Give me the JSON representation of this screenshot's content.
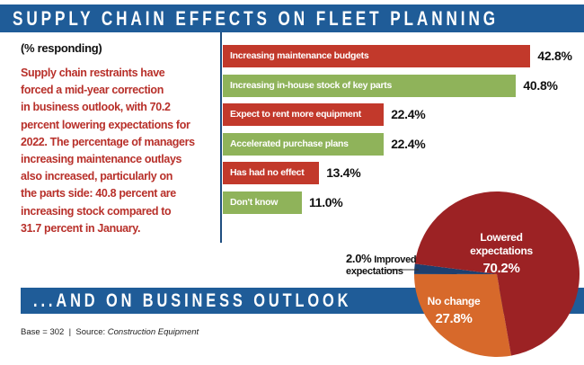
{
  "header": {
    "title": "SUPPLY CHAIN EFFECTS ON FLEET PLANNING",
    "subtitle": "...AND ON BUSINESS OUTLOOK"
  },
  "unit_label": "(% responding)",
  "description_lines": [
    "Supply chain restraints have",
    "forced a mid-year correction",
    "in business outlook, with 70.2",
    "percent lowering expectations for",
    "2022. The percentage of managers",
    "increasing maintenance outlays",
    "also increased, particularly on",
    "the parts side: 40.8 percent are",
    "increasing stock compared to",
    "31.7 percent in January."
  ],
  "footer": {
    "base": "Base = 302",
    "separator": "|",
    "source_label": "Source:",
    "source": "Construction Equipment"
  },
  "colors": {
    "band": "#1f5c98",
    "bar_red": "#c2392b",
    "bar_green": "#8fb35a",
    "pie_lowered": "#9c2224",
    "pie_nochange": "#d7692b",
    "pie_improved": "#1d3f6e",
    "text_red": "#b8302a"
  },
  "chart_data": [
    {
      "type": "bar",
      "orientation": "horizontal",
      "categories": [
        "Increasing maintenance budgets",
        "Increasing in-house stock of key parts",
        "Expect to rent more equipment",
        "Accelerated purchase plans",
        "Has had no effect",
        "Don't know"
      ],
      "values": [
        42.8,
        40.8,
        22.4,
        22.4,
        13.4,
        11.0
      ],
      "value_labels": [
        "42.8%",
        "40.8%",
        "22.4%",
        "22.4%",
        "13.4%",
        "11.0%"
      ],
      "bar_colors": [
        "#c2392b",
        "#8fb35a",
        "#c2392b",
        "#8fb35a",
        "#c2392b",
        "#8fb35a"
      ],
      "unit": "%"
    },
    {
      "type": "pie",
      "slices": [
        {
          "label": "Lowered expectations",
          "label_lines": [
            "Lowered",
            "expectations"
          ],
          "value": 70.2,
          "value_label": "70.2%",
          "color": "#9c2224"
        },
        {
          "label": "No change",
          "label_lines": [
            "No change"
          ],
          "value": 27.8,
          "value_label": "27.8%",
          "color": "#d7692b"
        },
        {
          "label": "Improved expectations",
          "label_lines": [
            "Improved",
            "expectations"
          ],
          "value": 2.0,
          "value_label": "2.0%",
          "color": "#1d3f6e"
        }
      ]
    }
  ]
}
